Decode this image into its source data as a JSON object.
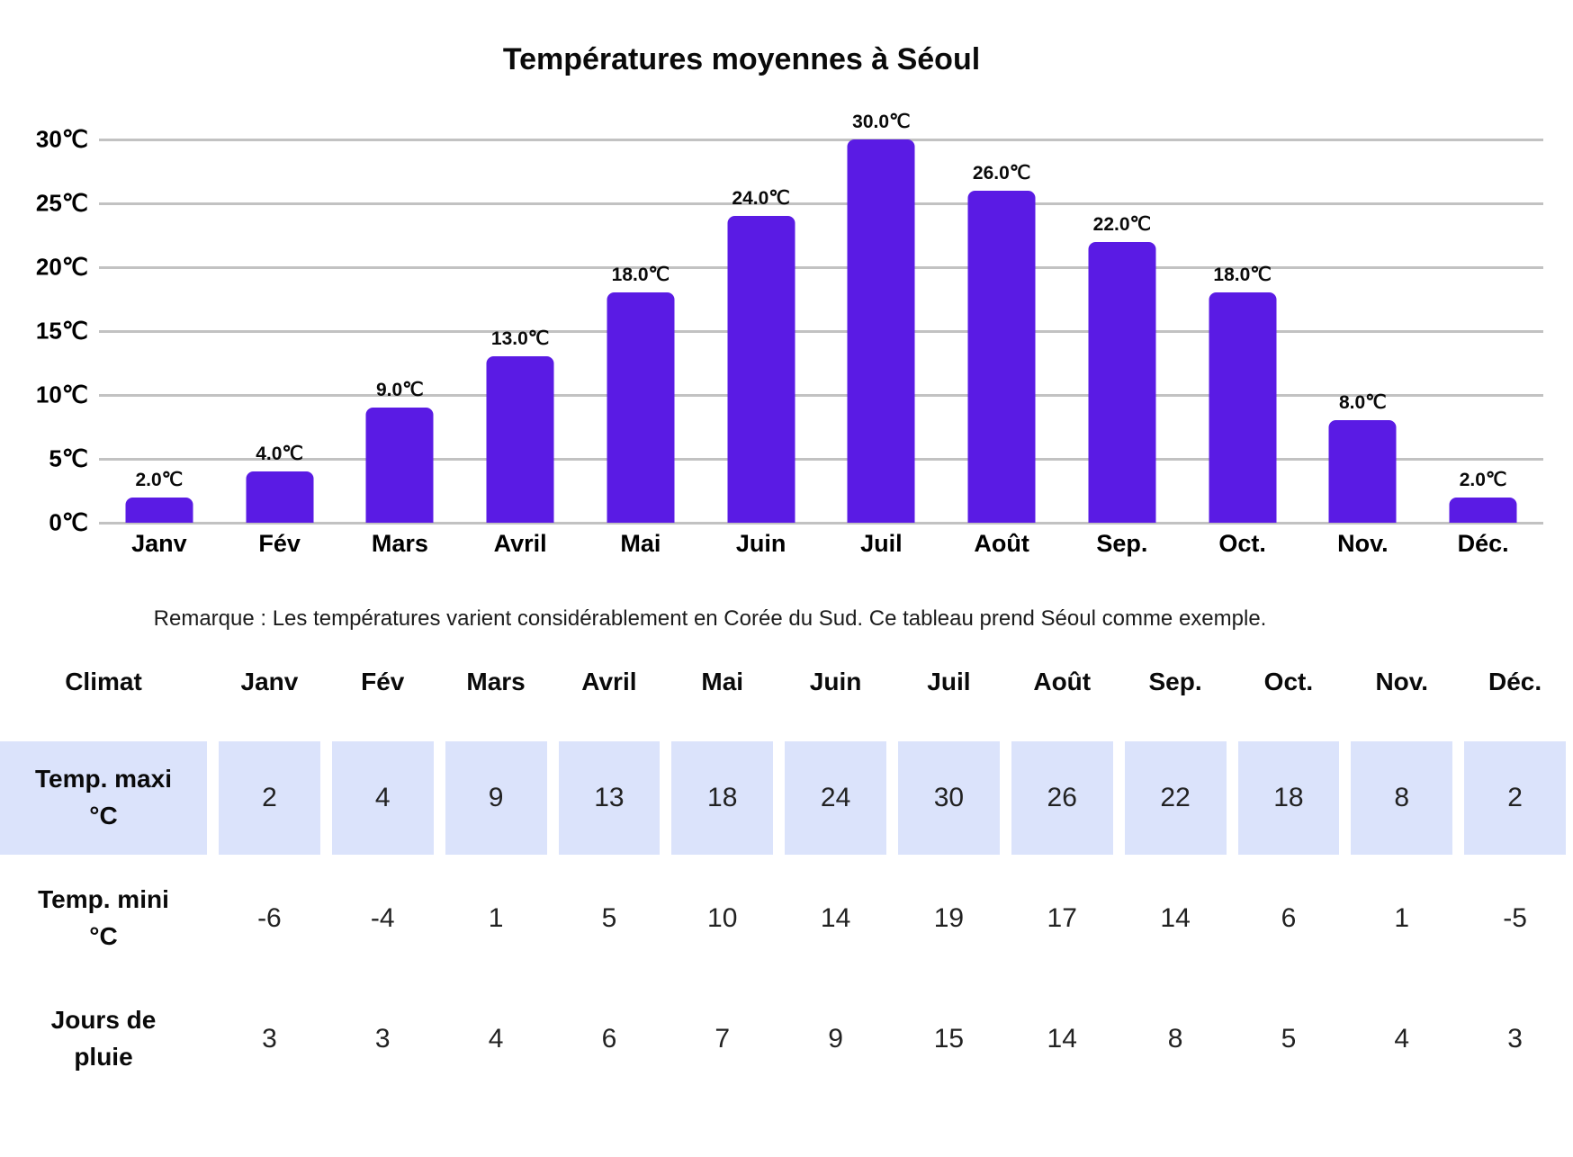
{
  "chart_data": {
    "type": "bar",
    "title": "Températures moyennes à Séoul",
    "categories": [
      "Janv",
      "Fév",
      "Mars",
      "Avril",
      "Mai",
      "Juin",
      "Juil",
      "Août",
      "Sep.",
      "Oct.",
      "Nov.",
      "Déc."
    ],
    "values": [
      2,
      4,
      9,
      13,
      18,
      24,
      30,
      26,
      22,
      18,
      8,
      2
    ],
    "value_labels": [
      "2.0℃",
      "4.0℃",
      "9.0℃",
      "13.0℃",
      "18.0℃",
      "24.0℃",
      "30.0℃",
      "26.0℃",
      "22.0℃",
      "18.0℃",
      "8.0℃",
      "2.0℃"
    ],
    "yticks": [
      "0℃",
      "5℃",
      "10℃",
      "15℃",
      "20℃",
      "25℃",
      "30℃"
    ],
    "ytick_step": 5,
    "ylim": [
      0,
      30
    ],
    "xlabel": "",
    "ylabel": "",
    "grid": true,
    "legend": "none",
    "bar_color": "#5a1be4",
    "grid_color": "#c2c2c2"
  },
  "remark": "Remarque : Les températures varient considérablement en Corée du Sud. Ce tableau prend Séoul comme exemple.",
  "table": {
    "highlight_color": "#dbe3fb",
    "header": [
      "Climat",
      "Janv",
      "Fév",
      "Mars",
      "Avril",
      "Mai",
      "Juin",
      "Juil",
      "Août",
      "Sep.",
      "Oct.",
      "Nov.",
      "Déc."
    ],
    "rows": [
      {
        "label": "Temp. maxi\n°C",
        "highlight": true,
        "values": [
          "2",
          "4",
          "9",
          "13",
          "18",
          "24",
          "30",
          "26",
          "22",
          "18",
          "8",
          "2"
        ]
      },
      {
        "label": "Temp. mini\n°C",
        "highlight": false,
        "values": [
          "-6",
          "-4",
          "1",
          "5",
          "10",
          "14",
          "19",
          "17",
          "14",
          "6",
          "1",
          "-5"
        ]
      },
      {
        "label": "Jours de\npluie",
        "highlight": false,
        "values": [
          "3",
          "3",
          "4",
          "6",
          "7",
          "9",
          "15",
          "14",
          "8",
          "5",
          "4",
          "3"
        ]
      }
    ]
  }
}
